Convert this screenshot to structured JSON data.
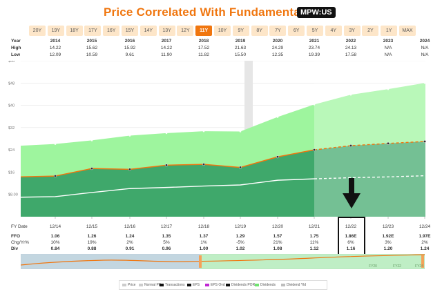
{
  "header": {
    "title": "Price Correlated With Fundamentals",
    "ticker": "MPW:US"
  },
  "periods": [
    "20Y",
    "19Y",
    "18Y",
    "17Y",
    "16Y",
    "15Y",
    "14Y",
    "13Y",
    "12Y",
    "11Y",
    "10Y",
    "9Y",
    "8Y",
    "7Y",
    "6Y",
    "5Y",
    "4Y",
    "3Y",
    "2Y",
    "1Y",
    "MAX"
  ],
  "active_period": "11Y",
  "stats": {
    "year_label": "Year",
    "high_label": "High",
    "low_label": "Low",
    "years": [
      "2014",
      "2015",
      "2016",
      "2017",
      "2018",
      "2019",
      "2020",
      "2021",
      "2022",
      "2023",
      "2024"
    ],
    "high": [
      "14.22",
      "15.62",
      "15.92",
      "14.22",
      "17.52",
      "21.63",
      "24.29",
      "23.74",
      "24.13",
      "N/A",
      "N/A"
    ],
    "low": [
      "12.09",
      "10.59",
      "9.61",
      "11.90",
      "11.82",
      "15.50",
      "12.35",
      "19.39",
      "17.58",
      "N/A",
      "N/A"
    ]
  },
  "fy_table": {
    "fy_label": "FY Date",
    "ffo_label": "FFO",
    "chg_label": "Chg/Yr%",
    "div_label": "Div",
    "dates": [
      "12/14",
      "12/15",
      "12/16",
      "12/17",
      "12/18",
      "12/19",
      "12/20",
      "12/21",
      "12/22",
      "12/23",
      "12/24"
    ],
    "ffo": [
      "1.06",
      "1.26",
      "1.24",
      "1.35",
      "1.37",
      "1.29",
      "1.57",
      "1.75",
      "1.86E",
      "1.92E",
      "1.97E"
    ],
    "chg": [
      "10%",
      "19%",
      "2%",
      "5%",
      "1%",
      "-5%",
      "21%",
      "11%",
      "6%",
      "3%",
      "2%"
    ],
    "div": [
      "0.84",
      "0.88",
      "0.91",
      "0.96",
      "1.00",
      "1.02",
      "1.08",
      "1.12",
      "1.16",
      "1.20",
      "1.24"
    ]
  },
  "nav": {
    "labels": [
      "FY20",
      "FY22",
      "FY24"
    ]
  },
  "legend": {
    "items": [
      "Price",
      "Normal PE",
      "Transactions",
      "EPS",
      "EPS Ovd",
      "Dividends POR",
      "Dividends",
      "Dividend Yld"
    ]
  },
  "colors": {
    "accent": "#f0760f",
    "fundamental_green": "#3fa86b",
    "dividend_green": "#9ef59e",
    "price_line": "#f0760f"
  },
  "chart_data": {
    "type": "area",
    "x": [
      "12/14",
      "12/15",
      "12/16",
      "12/17",
      "12/18",
      "12/19",
      "12/20",
      "12/21",
      "12/22",
      "12/23",
      "12/24"
    ],
    "ylim": [
      0,
      56
    ],
    "yticks": [
      "$8.00",
      "$16",
      "$24",
      "$32",
      "$40",
      "$48",
      "$56"
    ],
    "series": [
      {
        "name": "FFO",
        "values": [
          14.6,
          17.3,
          17.0,
          18.5,
          18.8,
          17.7,
          21.5,
          24.0,
          25.5,
          26.3,
          27.0
        ]
      },
      {
        "name": "Dividends",
        "values": [
          26.1,
          27.4,
          29.1,
          30.0,
          30.7,
          30.6,
          35.8,
          40.3,
          43.8,
          45.8,
          48.0
        ]
      },
      {
        "name": "Normal PE",
        "values": [
          7.2,
          8.7,
          10.1,
          10.5,
          11.0,
          11.4,
          13.1,
          13.6,
          14.0,
          14.3,
          14.7
        ]
      }
    ]
  }
}
